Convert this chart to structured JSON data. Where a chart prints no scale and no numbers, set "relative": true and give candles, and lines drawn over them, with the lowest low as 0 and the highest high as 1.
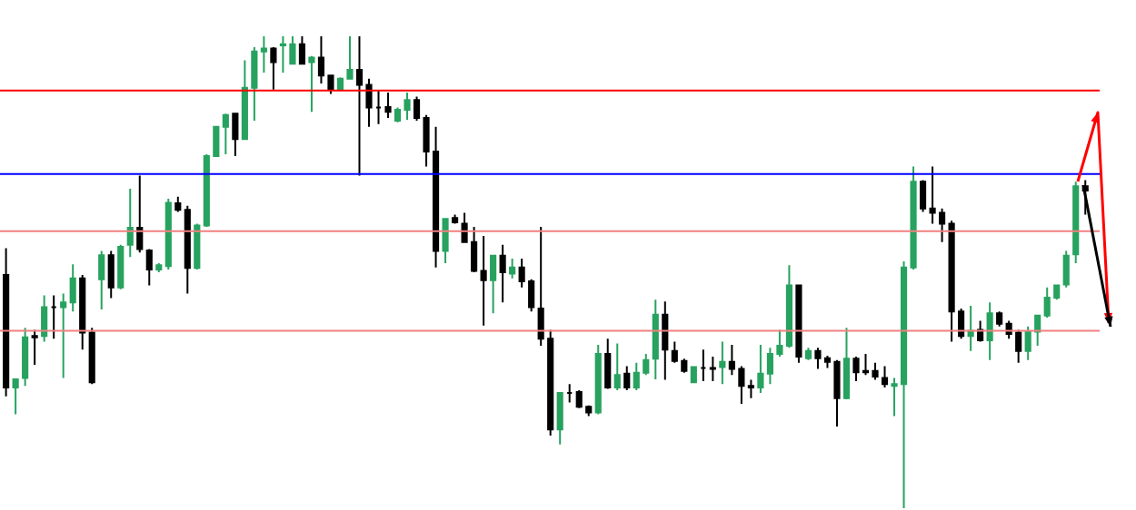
{
  "chart_data": {
    "type": "candlestick",
    "relative": true,
    "colors": [
      "#000000",
      "#27a25f",
      "#27a25f",
      "#000000",
      "#27a25f",
      "#000000",
      "#27a25f",
      "#27a25f",
      "#000000",
      "#000000",
      "#27a25f",
      "#000000",
      "#27a25f",
      "#27a25f",
      "#000000",
      "#000000",
      "#27a25f",
      "#27a25f",
      "#000000",
      "#000000",
      "#27a25f",
      "#27a25f",
      "#27a25f",
      "#27a25f",
      "#000000",
      "#27a25f",
      "#27a25f",
      "#27a25f",
      "#000000",
      "#27a25f",
      "#27a25f",
      "#000000",
      "#27a25f",
      "#000000",
      "#000000",
      "#27a25f",
      "#27a25f",
      "#000000",
      "#000000",
      "#000000",
      "#000000",
      "#27a25f",
      "#27a25f",
      "#000000",
      "#000000",
      "#000000",
      "#27a25f",
      "#000000",
      "#000000",
      "#000000",
      "#000000",
      "#27a25f",
      "#000000",
      "#27a25f",
      "#000000",
      "#000000",
      "#000000",
      "#000000",
      "#27a25f",
      "#000000",
      "#000000",
      "#000000",
      "#27a25f",
      "#000000",
      "#27a25f",
      "#000000",
      "#27a25f",
      "#27a25f",
      "#27a25f",
      "#000000",
      "#000000",
      "#000000",
      "#27a25f",
      "#000000",
      "#000000",
      "#27a25f",
      "#000000",
      "#000000",
      "#000000",
      "#27a25f",
      "#27a25f",
      "#27a25f",
      "#27a25f",
      "#000000",
      "#27a25f",
      "#000000",
      "#000000",
      "#000000",
      "#27a25f",
      "#000000",
      "#000000",
      "#000000",
      "#000000",
      "#27a25f",
      "#27a25f",
      "#27a25f",
      "#000000",
      "#000000",
      "#000000",
      "#000000",
      "#000000",
      "#27a25f",
      "#000000",
      "#27a25f",
      "#000000",
      "#000000",
      "#000000",
      "#27a25f",
      "#27a25f",
      "#27a25f",
      "#27a25f",
      "#27a25f",
      "#27a25f",
      "#000000"
    ],
    "categories": [
      null,
      null,
      null,
      null,
      null,
      null,
      null,
      null,
      null,
      null,
      null,
      null,
      null,
      null,
      null,
      null,
      null,
      null,
      null,
      null,
      null,
      null,
      null,
      null,
      null,
      null,
      null,
      null,
      null,
      null,
      null,
      null,
      null,
      null,
      null,
      null,
      null,
      null,
      null,
      null,
      null,
      null,
      null,
      null,
      null,
      null,
      null,
      null,
      null,
      null,
      null,
      null,
      null,
      null,
      null,
      null,
      null,
      null,
      null,
      null,
      null,
      null,
      null,
      null,
      null,
      null,
      null,
      null,
      null,
      null,
      null,
      null,
      null,
      null,
      null,
      null,
      null,
      null,
      null,
      null,
      null,
      null,
      null,
      null,
      null,
      null,
      null,
      null,
      null,
      null,
      null,
      null,
      null,
      null,
      null,
      null,
      null,
      null,
      null,
      null,
      null,
      null,
      null,
      null,
      null,
      null,
      null,
      null,
      null,
      null,
      null,
      null,
      null,
      null
    ],
    "ohlc": [
      [
        0.494,
        0.551,
        0.237,
        0.256
      ],
      [
        0.256,
        0.273,
        0.199,
        0.273
      ],
      [
        0.276,
        0.382,
        0.259,
        0.362
      ],
      [
        0.365,
        0.378,
        0.304,
        0.362
      ],
      [
        0.365,
        0.451,
        0.353,
        0.426
      ],
      [
        0.426,
        0.451,
        0.359,
        0.426
      ],
      [
        0.426,
        0.455,
        0.276,
        0.436
      ],
      [
        0.436,
        0.517,
        0.417,
        0.487
      ],
      [
        0.487,
        0.494,
        0.336,
        0.372
      ],
      [
        0.372,
        0.382,
        0.263,
        0.267
      ],
      [
        0.485,
        0.545,
        0.421,
        0.536
      ],
      [
        0.536,
        0.545,
        0.445,
        0.468
      ],
      [
        0.468,
        0.558,
        0.464,
        0.554
      ],
      [
        0.558,
        0.677,
        0.532,
        0.594
      ],
      [
        0.594,
        0.705,
        0.542,
        0.549
      ],
      [
        0.546,
        0.549,
        0.472,
        0.506
      ],
      [
        0.506,
        0.519,
        0.5,
        0.515
      ],
      [
        0.513,
        0.656,
        0.506,
        0.647
      ],
      [
        0.646,
        0.66,
        0.628,
        0.632
      ],
      [
        0.632,
        0.641,
        0.455,
        0.509
      ],
      [
        0.509,
        0.603,
        0.506,
        0.599
      ],
      [
        0.599,
        0.75,
        0.596,
        0.746
      ],
      [
        0.746,
        0.81,
        0.746,
        0.808
      ],
      [
        0.808,
        0.836,
        0.75,
        0.833
      ],
      [
        0.836,
        0.836,
        0.746,
        0.782
      ],
      [
        0.782,
        0.949,
        0.782,
        0.891
      ],
      [
        0.891,
        0.977,
        0.821,
        0.968
      ],
      [
        0.968,
        1,
        0.923,
        0.974
      ],
      [
        0.974,
        0.977,
        0.887,
        0.945
      ],
      [
        0.981,
        1,
        0.923,
        0.983
      ],
      [
        0.942,
        1,
        0.942,
        0.983
      ],
      [
        0.983,
        1,
        0.942,
        0.942
      ],
      [
        0.945,
        0.958,
        0.84,
        0.955
      ],
      [
        0.955,
        1,
        0.9,
        0.917
      ],
      [
        0.917,
        0.917,
        0.878,
        0.887
      ],
      [
        0.887,
        0.913,
        0.885,
        0.91
      ],
      [
        0.91,
        1,
        0.908,
        0.929
      ],
      [
        0.929,
        1,
        0.705,
        0.897
      ],
      [
        0.897,
        0.91,
        0.808,
        0.849
      ],
      [
        0.849,
        0.885,
        0.814,
        0.849
      ],
      [
        0.85,
        0.881,
        0.827,
        0.84
      ],
      [
        0.821,
        0.849,
        0.818,
        0.844
      ],
      [
        0.844,
        0.881,
        0.823,
        0.865
      ],
      [
        0.865,
        0.872,
        0.821,
        0.827
      ],
      [
        0.827,
        0.833,
        0.724,
        0.756
      ],
      [
        0.756,
        0.808,
        0.51,
        0.545
      ],
      [
        0.545,
        0.615,
        0.519,
        0.613
      ],
      [
        0.615,
        0.622,
        0.603,
        0.606
      ],
      [
        0.603,
        0.626,
        0.562,
        0.564
      ],
      [
        0.564,
        0.596,
        0.5,
        0.503
      ],
      [
        0.503,
        0.577,
        0.387,
        0.483
      ],
      [
        0.483,
        0.536,
        0.413,
        0.535
      ],
      [
        0.535,
        0.558,
        0.436,
        0.5
      ],
      [
        0.497,
        0.529,
        0.487,
        0.51
      ],
      [
        0.51,
        0.529,
        0.468,
        0.481
      ],
      [
        0.481,
        0.485,
        0.417,
        0.426
      ],
      [
        0.423,
        0.596,
        0.344,
        0.359
      ],
      [
        0.359,
        0.378,
        0.154,
        0.167
      ],
      [
        0.167,
        0.246,
        0.135,
        0.244
      ],
      [
        0.244,
        0.263,
        0.224,
        0.244
      ],
      [
        0.246,
        0.25,
        0.212,
        0.215
      ],
      [
        0.215,
        0.218,
        0.195,
        0.203
      ],
      [
        0.203,
        0.346,
        0.199,
        0.327
      ],
      [
        0.327,
        0.359,
        0.253,
        0.256
      ],
      [
        0.256,
        0.349,
        0.25,
        0.282
      ],
      [
        0.285,
        0.301,
        0.25,
        0.256
      ],
      [
        0.256,
        0.308,
        0.25,
        0.287
      ],
      [
        0.287,
        0.327,
        0.282,
        0.314
      ],
      [
        0.317,
        0.442,
        0.273,
        0.41
      ],
      [
        0.41,
        0.438,
        0.272,
        0.336
      ],
      [
        0.333,
        0.353,
        0.308,
        0.312
      ],
      [
        0.312,
        0.317,
        0.287,
        0.291
      ],
      [
        0.267,
        0.301,
        0.265,
        0.299
      ],
      [
        0.297,
        0.336,
        0.269,
        0.297
      ],
      [
        0.297,
        0.321,
        0.269,
        0.295
      ],
      [
        0.299,
        0.353,
        0.263,
        0.31
      ],
      [
        0.31,
        0.346,
        0.282,
        0.295
      ],
      [
        0.295,
        0.301,
        0.221,
        0.259
      ],
      [
        0.259,
        0.272,
        0.233,
        0.256
      ],
      [
        0.256,
        0.346,
        0.244,
        0.285
      ],
      [
        0.285,
        0.34,
        0.263,
        0.327
      ],
      [
        0.327,
        0.378,
        0.321,
        0.344
      ],
      [
        0.344,
        0.515,
        0.34,
        0.472
      ],
      [
        0.472,
        0.474,
        0.308,
        0.321
      ],
      [
        0.318,
        0.34,
        0.314,
        0.333
      ],
      [
        0.333,
        0.34,
        0.295,
        0.318
      ],
      [
        0.318,
        0.323,
        0.297,
        0.31
      ],
      [
        0.31,
        0.314,
        0.173,
        0.233
      ],
      [
        0.233,
        0.382,
        0.231,
        0.317
      ],
      [
        0.317,
        0.321,
        0.269,
        0.288
      ],
      [
        0.291,
        0.327,
        0.282,
        0.288
      ],
      [
        0.291,
        0.308,
        0.272,
        0.279
      ],
      [
        0.276,
        0.301,
        0.256,
        0.263
      ],
      [
        0.259,
        0.276,
        0.195,
        0.263
      ],
      [
        0.263,
        0.523,
        0,
        0.51
      ],
      [
        0.51,
        0.724,
        0.506,
        0.692
      ],
      [
        0.692,
        0.695,
        0.628,
        0.635
      ],
      [
        0.635,
        0.724,
        0.603,
        0.626
      ],
      [
        0.626,
        0.635,
        0.564,
        0.603
      ],
      [
        0.603,
        0.609,
        0.353,
        0.417
      ],
      [
        0.417,
        0.423,
        0.359,
        0.365
      ],
      [
        0.365,
        0.429,
        0.333,
        0.376
      ],
      [
        0.378,
        0.397,
        0.353,
        0.356
      ],
      [
        0.356,
        0.436,
        0.314,
        0.413
      ],
      [
        0.413,
        0.417,
        0.385,
        0.391
      ],
      [
        0.391,
        0.397,
        0.359,
        0.369
      ],
      [
        0.372,
        0.378,
        0.308,
        0.333
      ],
      [
        0.333,
        0.385,
        0.314,
        0.374
      ],
      [
        0.374,
        0.41,
        0.344,
        0.408
      ],
      [
        0.408,
        0.468,
        0.404,
        0.446
      ],
      [
        0.446,
        0.474,
        0.442,
        0.472
      ],
      [
        0.474,
        0.545,
        0.468,
        0.535
      ],
      [
        0.538,
        0.692,
        0.519,
        0.682
      ],
      [
        0.682,
        0.695,
        0.622,
        0.673
      ]
    ],
    "ref_lines": [
      {
        "axis": "y",
        "value": 0.885,
        "color": "#ff0000"
      },
      {
        "axis": "y",
        "value": 0.708,
        "color": "#0000ff"
      },
      {
        "axis": "y",
        "value": 0.587,
        "color": "#f08080"
      },
      {
        "axis": "y",
        "value": 0.376,
        "color": "#f08080"
      }
    ]
  }
}
